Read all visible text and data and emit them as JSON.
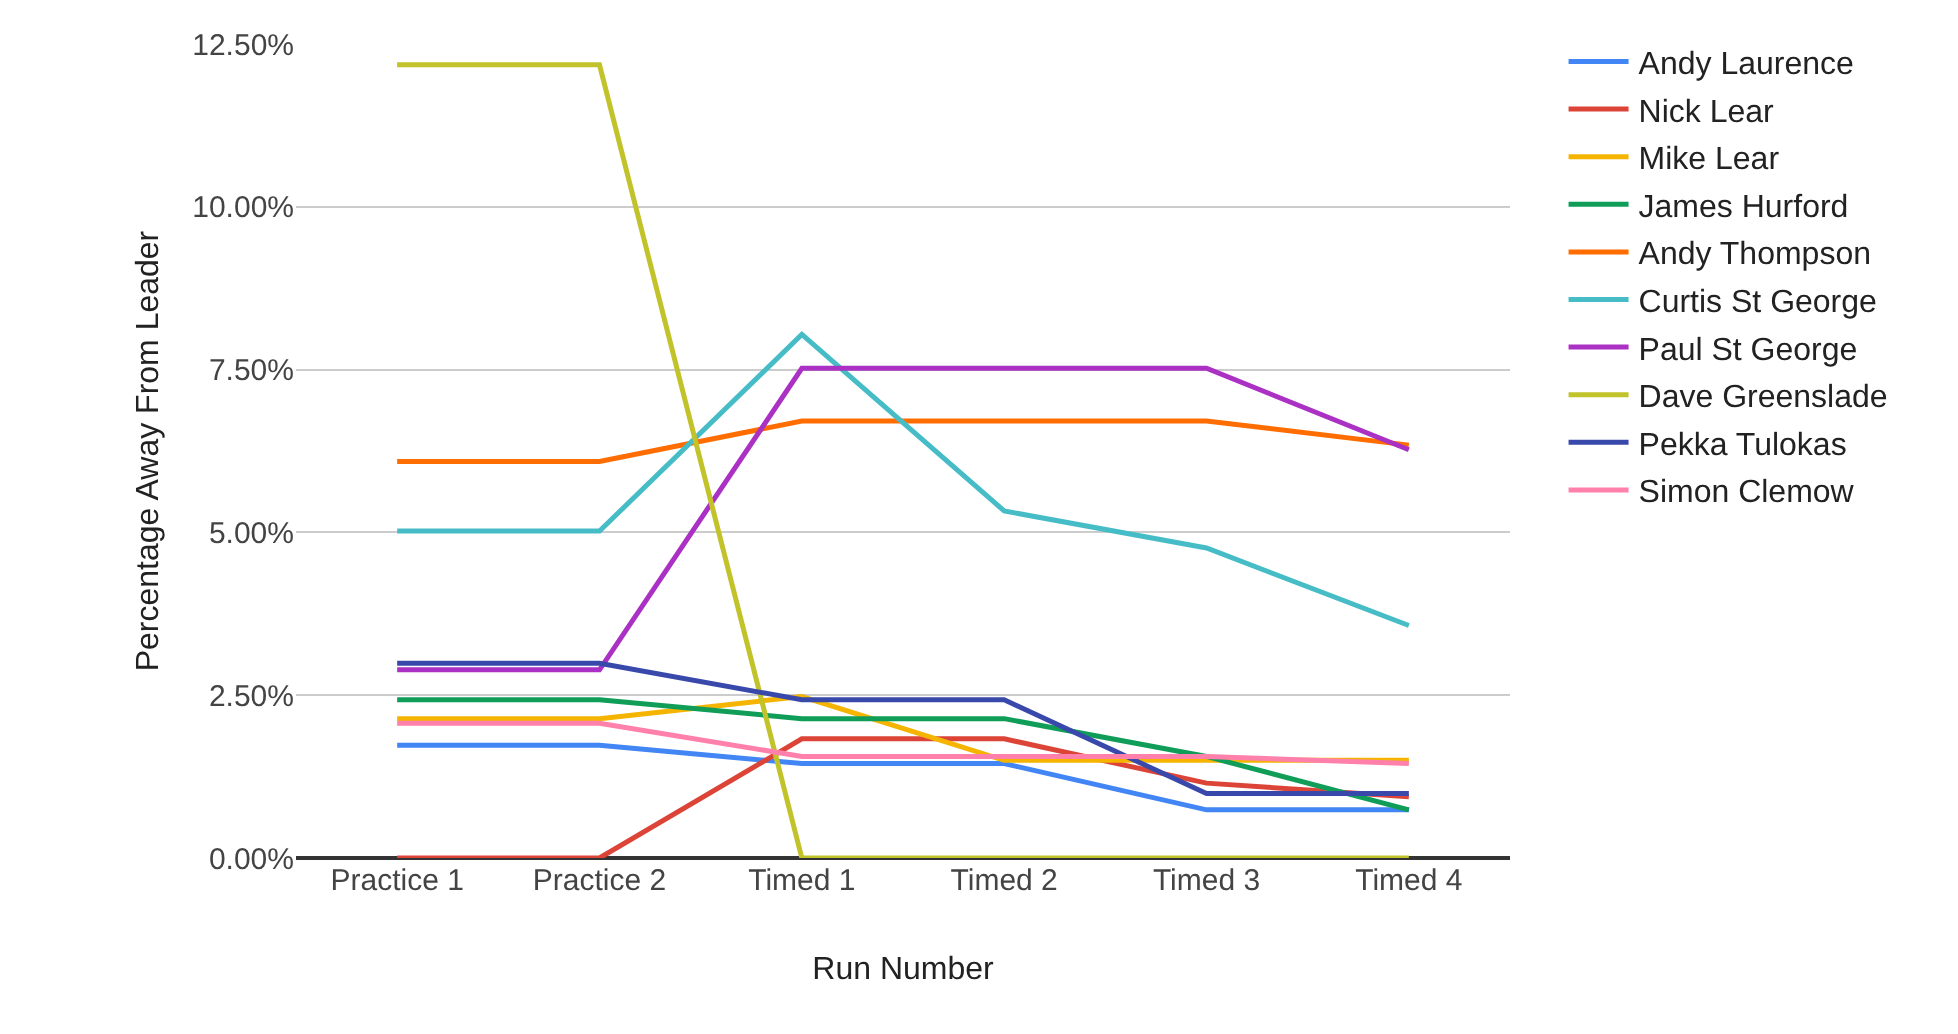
{
  "chart_data": {
    "type": "line",
    "xlabel": "Run Number",
    "ylabel": "Percentage Away From Leader",
    "categories": [
      "Practice 1",
      "Practice 2",
      "Timed 1",
      "Timed 2",
      "Timed 3",
      "Timed 4"
    ],
    "series": [
      {
        "name": "Andy Laurence",
        "color": "#4285f4",
        "values": [
          1.73,
          1.73,
          1.45,
          1.45,
          0.74,
          0.74
        ]
      },
      {
        "name": "Nick Lear",
        "color": "#db4437",
        "values": [
          0,
          0,
          1.83,
          1.83,
          1.15,
          0.94
        ]
      },
      {
        "name": "Mike Lear",
        "color": "#f4b400",
        "values": [
          2.14,
          2.14,
          2.48,
          1.5,
          1.5,
          1.5
        ]
      },
      {
        "name": "James Hurford",
        "color": "#0f9d58",
        "values": [
          2.43,
          2.43,
          2.14,
          2.14,
          1.56,
          0.74
        ]
      },
      {
        "name": "Andy Thompson",
        "color": "#ff6d01",
        "values": [
          6.09,
          6.09,
          6.71,
          6.71,
          6.71,
          6.34
        ]
      },
      {
        "name": "Curtis St George",
        "color": "#46bdc6",
        "values": [
          5.02,
          5.02,
          8.04,
          5.33,
          4.76,
          3.57
        ]
      },
      {
        "name": "Paul St George",
        "color": "#ab30c4",
        "values": [
          2.89,
          2.89,
          7.52,
          7.52,
          7.52,
          6.27
        ]
      },
      {
        "name": "Dave Greenslade",
        "color": "#c2c22b",
        "values": [
          12.18,
          12.18,
          0,
          0,
          0,
          0
        ]
      },
      {
        "name": "Pekka Tulokas",
        "color": "#3949ab",
        "values": [
          2.99,
          2.99,
          2.43,
          2.43,
          0.99,
          0.99
        ]
      },
      {
        "name": "Simon Clemow",
        "color": "#ff80ab",
        "values": [
          2.07,
          2.07,
          1.56,
          1.56,
          1.56,
          1.45
        ]
      }
    ],
    "ylim": [
      0,
      12.5
    ],
    "yticks": [
      {
        "value": 0,
        "label": "0.00%"
      },
      {
        "value": 2.5,
        "label": "2.50%"
      },
      {
        "value": 5,
        "label": "5.00%"
      },
      {
        "value": 7.5,
        "label": "7.50%"
      },
      {
        "value": 10,
        "label": "10.00%"
      },
      {
        "value": 12.5,
        "label": "12.50%"
      }
    ],
    "grid": "y",
    "legend": "right",
    "marker": "none",
    "line_style": "solid"
  }
}
